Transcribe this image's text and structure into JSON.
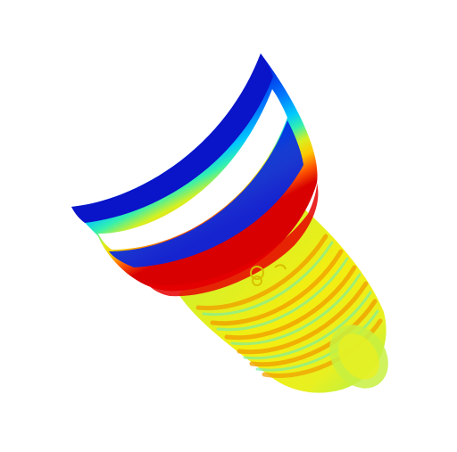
{
  "scene": {
    "background_color": "#ffffff",
    "object": "threaded-cylinder-heatmap",
    "colormap": [
      "#0000cc",
      "#0066ff",
      "#00ccff",
      "#33ffcc",
      "#ccff33",
      "#ffee00",
      "#ff8800",
      "#ff2200",
      "#cc0000"
    ],
    "rim_color": "#0a14c8",
    "band_color": "#ffffff"
  }
}
